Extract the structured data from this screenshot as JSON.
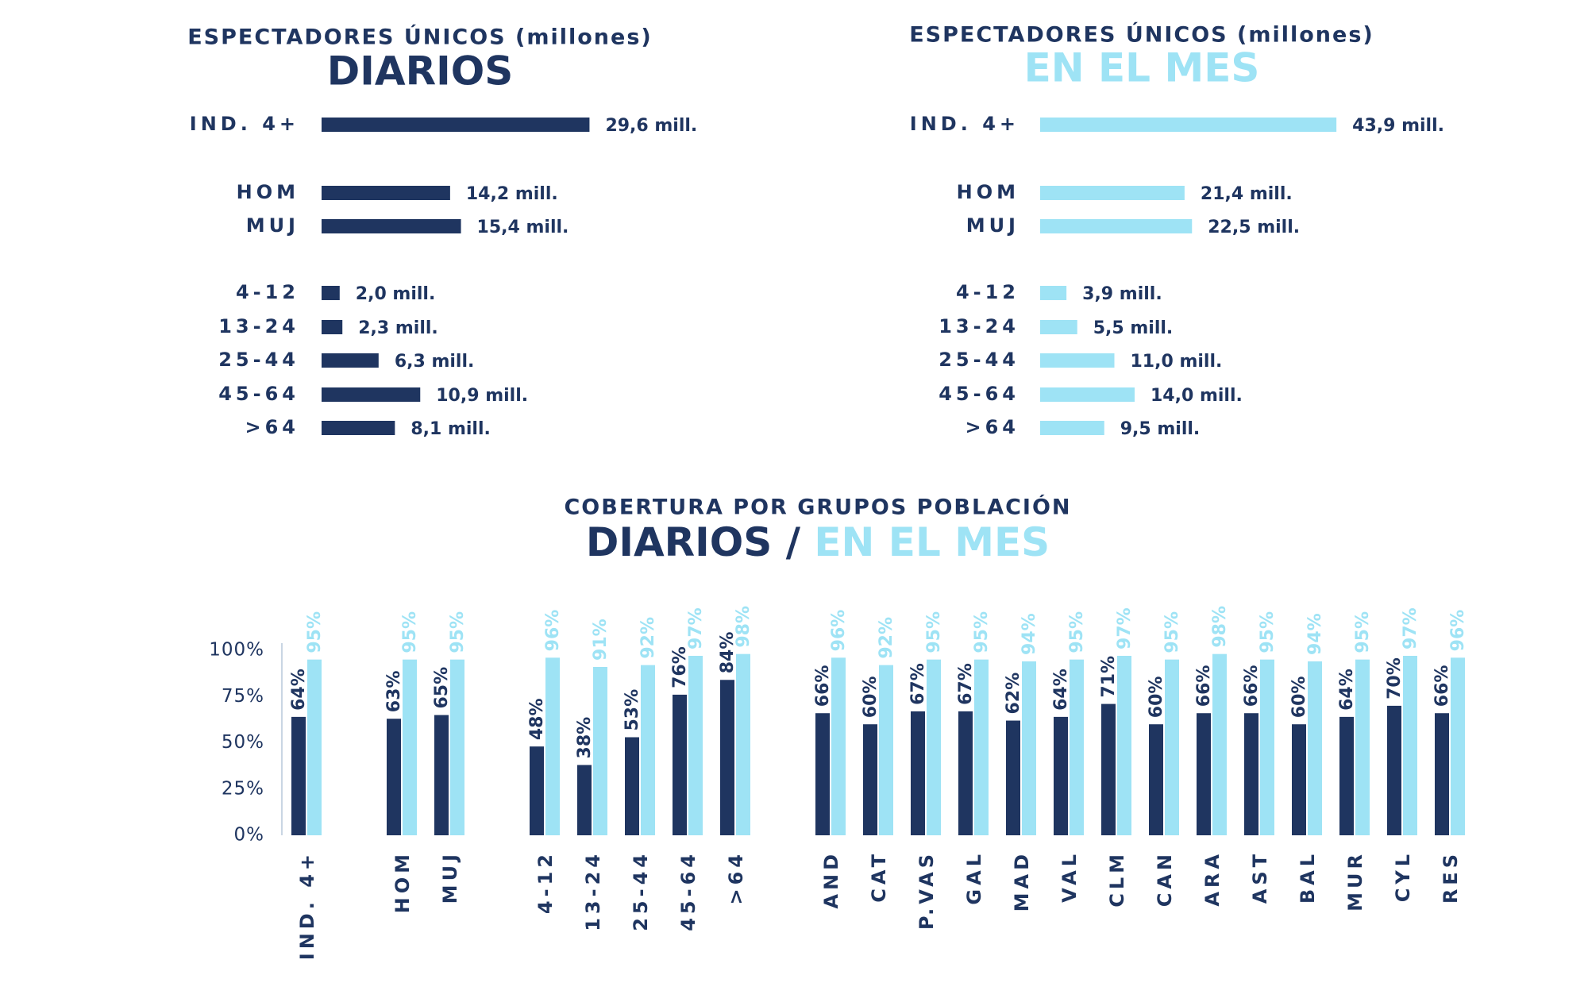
{
  "chart_data": [
    {
      "type": "bar",
      "orientation": "horizontal",
      "title": "ESPECTADORES ÚNICOS (millones)",
      "subtitle": "DIARIOS",
      "color": "#1f3560",
      "categories": [
        "IND. 4+",
        "HOM",
        "MUJ",
        "4-12",
        "13-24",
        "25-44",
        "45-64",
        ">64"
      ],
      "values": [
        29.6,
        14.2,
        15.4,
        2.0,
        2.3,
        6.3,
        10.9,
        8.1
      ],
      "value_labels": [
        "29,6 mill.",
        "14,2 mill.",
        "15,4 mill.",
        "2,0 mill.",
        "2,3 mill.",
        "6,3 mill.",
        "10,9 mill.",
        "8,1 mill."
      ]
    },
    {
      "type": "bar",
      "orientation": "horizontal",
      "title": "ESPECTADORES ÚNICOS (millones)",
      "subtitle": "EN EL MES",
      "color": "#9ee3f5",
      "categories": [
        "IND. 4+",
        "HOM",
        "MUJ",
        "4-12",
        "13-24",
        "25-44",
        "45-64",
        ">64"
      ],
      "values": [
        43.9,
        21.4,
        22.5,
        3.9,
        5.5,
        11.0,
        14.0,
        9.5
      ],
      "value_labels": [
        "43,9 mill.",
        "21,4 mill.",
        "22,5 mill.",
        "3,9 mill.",
        "5,5 mill.",
        "11,0 mill.",
        "14,0 mill.",
        "9,5 mill."
      ]
    },
    {
      "type": "bar",
      "title": "COBERTURA POR GRUPOS POBLACIÓN",
      "subtitle": [
        "DIARIOS",
        "/",
        "EN EL MES"
      ],
      "categories": [
        "IND. 4+",
        "HOM",
        "MUJ",
        "4-12",
        "13-24",
        "25-44",
        "45-64",
        ">64",
        "AND",
        "CAT",
        "P.VAS",
        "GAL",
        "MAD",
        "VAL",
        "CLM",
        "CAN",
        "ARA",
        "AST",
        "BAL",
        "MUR",
        "CYL",
        "RES"
      ],
      "ylim": [
        0,
        100
      ],
      "yticks": [
        {
          "value": 0,
          "label": "0%"
        },
        {
          "value": 25,
          "label": "25%"
        },
        {
          "value": 50,
          "label": "50%"
        },
        {
          "value": 75,
          "label": "75%"
        },
        {
          "value": 100,
          "label": "100%"
        }
      ],
      "series": [
        {
          "color": "#1f3560",
          "values": [
            64,
            63,
            65,
            48,
            38,
            53,
            76,
            84,
            66,
            60,
            67,
            67,
            62,
            64,
            71,
            60,
            66,
            66,
            60,
            64,
            70,
            66
          ],
          "value_labels": [
            "64%",
            "63%",
            "65%",
            "48%",
            "38%",
            "53%",
            "76%",
            "84%",
            "66%",
            "60%",
            "67%",
            "67%",
            "62%",
            "64%",
            "71%",
            "60%",
            "66%",
            "66%",
            "60%",
            "64%",
            "70%",
            "66%"
          ]
        },
        {
          "color": "#9ee3f5",
          "values": [
            95,
            95,
            95,
            96,
            91,
            92,
            97,
            98,
            96,
            92,
            95,
            95,
            94,
            95,
            97,
            95,
            98,
            95,
            94,
            95,
            97,
            96
          ],
          "value_labels": [
            "95%",
            "95%",
            "95%",
            "96%",
            "91%",
            "92%",
            "97%",
            "98%",
            "96%",
            "92%",
            "95%",
            "95%",
            "94%",
            "95%",
            "97%",
            "95%",
            "98%",
            "95%",
            "94%",
            "95%",
            "97%",
            "96%"
          ]
        }
      ]
    }
  ]
}
